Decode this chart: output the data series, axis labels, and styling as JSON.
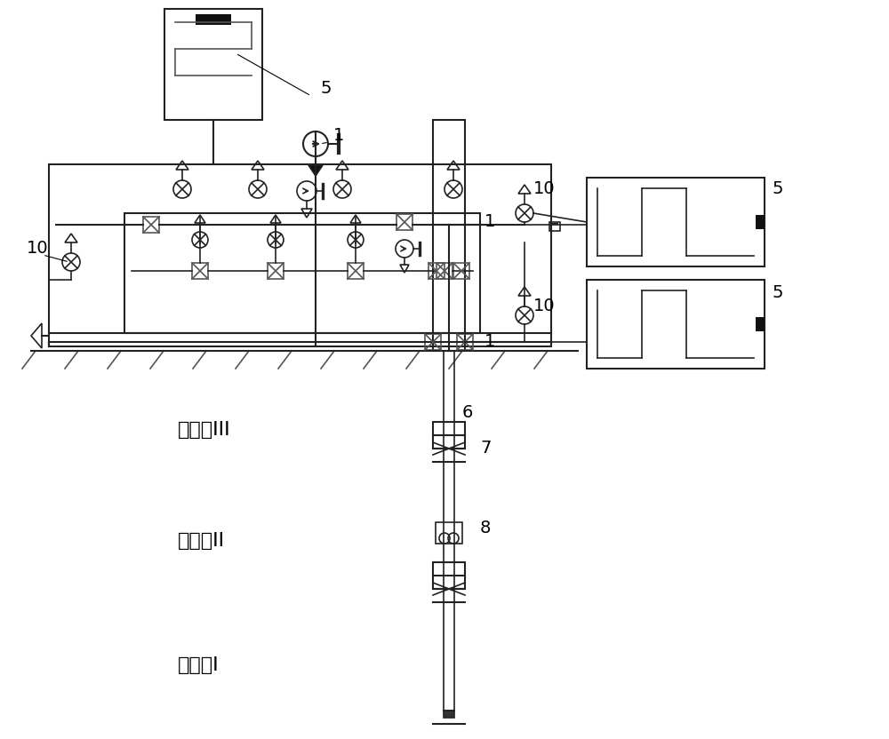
{
  "bg_color": "#ffffff",
  "line_color": "#555555",
  "line_color_dark": "#222222",
  "green_line": "#7aab7a",
  "hatch_color": "#999999",
  "label_1": "1",
  "label_5": "5",
  "label_6": "6",
  "label_7": "7",
  "label_8": "8",
  "label_10": "10",
  "text_layer3": "注聚层III",
  "text_layer2": "注聚层II",
  "text_layer1": "注聚层I",
  "font_size_label": 14,
  "font_size_layer": 16,
  "fig_width": 10.0,
  "fig_height": 8.32
}
